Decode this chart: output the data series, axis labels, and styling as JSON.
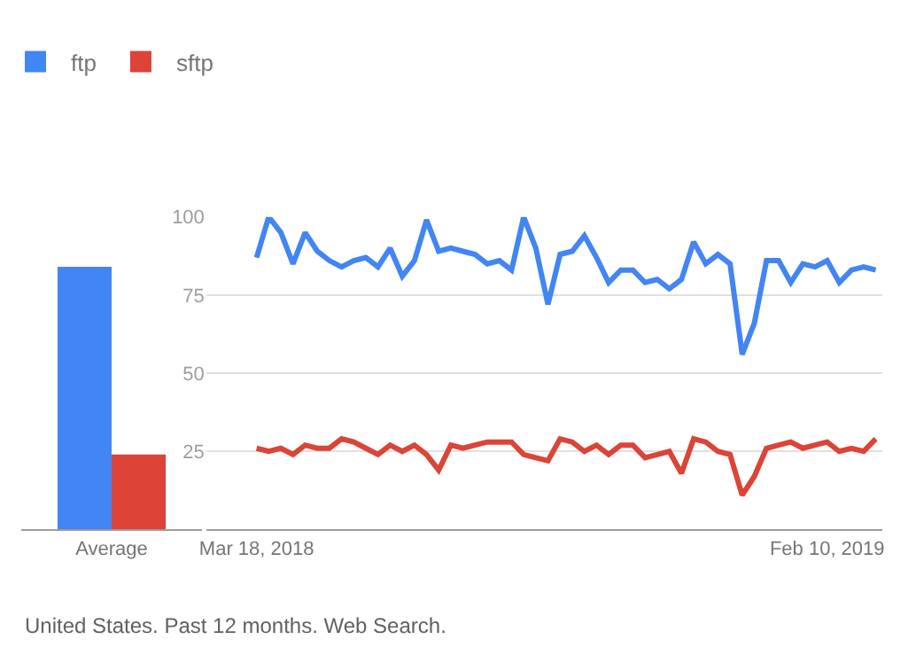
{
  "chart_data": [
    {
      "type": "bar",
      "categories": [
        "Average"
      ],
      "series": [
        {
          "name": "ftp",
          "color": "#4285f4",
          "values": [
            84
          ]
        },
        {
          "name": "sftp",
          "color": "#db4437",
          "values": [
            24
          ]
        }
      ],
      "ylim": [
        0,
        100
      ],
      "tick_labels": "x",
      "legend": "top",
      "grid": false
    },
    {
      "type": "line",
      "x": [
        "2018-03-18",
        "2018-03-25",
        "2018-04-01",
        "2018-04-08",
        "2018-04-15",
        "2018-04-22",
        "2018-04-29",
        "2018-05-06",
        "2018-05-13",
        "2018-05-20",
        "2018-05-27",
        "2018-06-03",
        "2018-06-10",
        "2018-06-17",
        "2018-06-24",
        "2018-07-01",
        "2018-07-08",
        "2018-07-15",
        "2018-07-22",
        "2018-07-29",
        "2018-08-05",
        "2018-08-12",
        "2018-08-19",
        "2018-08-26",
        "2018-09-02",
        "2018-09-09",
        "2018-09-16",
        "2018-09-23",
        "2018-09-30",
        "2018-10-07",
        "2018-10-14",
        "2018-10-21",
        "2018-10-28",
        "2018-11-04",
        "2018-11-11",
        "2018-11-18",
        "2018-11-25",
        "2018-12-02",
        "2018-12-09",
        "2018-12-16",
        "2018-12-23",
        "2018-12-30",
        "2019-01-06",
        "2019-01-13",
        "2019-01-20",
        "2019-01-27",
        "2019-02-03",
        "2019-02-10",
        "2019-02-17",
        "2019-02-24",
        "2019-03-03",
        "2019-03-10"
      ],
      "series": [
        {
          "color": "#4285f4",
          "values": [
            87,
            100,
            95,
            85,
            95,
            89,
            86,
            84,
            86,
            87,
            84,
            90,
            81,
            86,
            99,
            89,
            90,
            89,
            88,
            85,
            86,
            83,
            100,
            90,
            72,
            88,
            89,
            94,
            87,
            79,
            83,
            83,
            79,
            80,
            77,
            80,
            92,
            85,
            88,
            85,
            56,
            66,
            86,
            86,
            79,
            85,
            84,
            86,
            79,
            83,
            84,
            83
          ]
        },
        {
          "color": "#db4437",
          "values": [
            26,
            25,
            26,
            24,
            27,
            26,
            26,
            29,
            28,
            26,
            24,
            27,
            25,
            27,
            24,
            19,
            27,
            26,
            27,
            28,
            28,
            28,
            24,
            23,
            22,
            29,
            28,
            25,
            27,
            24,
            27,
            27,
            23,
            24,
            25,
            18,
            29,
            28,
            25,
            24,
            11,
            17,
            26,
            27,
            28,
            26,
            27,
            28,
            25,
            26,
            25,
            29
          ]
        }
      ],
      "xlim": [
        "2018-02-17",
        "2019-03-14"
      ],
      "xticks": [
        {
          "value": "2018-03-18",
          "label": "Mar 18, 2018"
        },
        {
          "value": "2019-02-10",
          "label": "Feb 10, 2019"
        }
      ],
      "ylim": [
        0,
        100
      ],
      "yticks": [
        25,
        50,
        75,
        100
      ],
      "grid": "y",
      "marker": "none",
      "line_style": "solid",
      "annotations": [
        "United States. Past 12 months. Web Search."
      ]
    }
  ]
}
